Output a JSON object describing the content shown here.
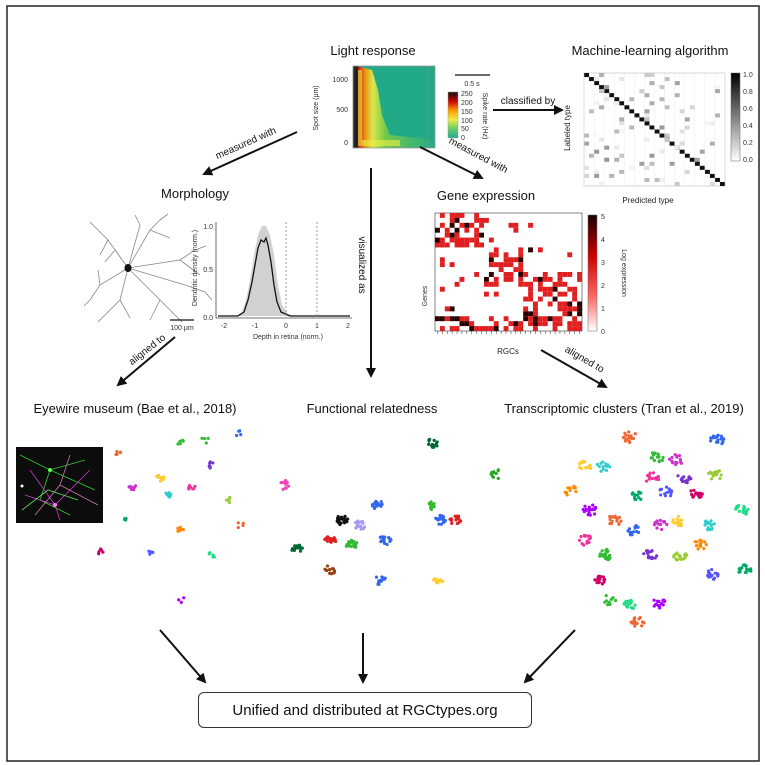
{
  "nodes": {
    "light_response": "Light response",
    "ml_algorithm": "Machine-learning algorithm",
    "morphology": "Morphology",
    "gene_expression": "Gene expression",
    "eyewire": "Eyewire museum (Bae et al., 2018)",
    "functional": "Functional relatedness",
    "transcriptomic": "Transcriptomic clusters (Tran et al., 2019)",
    "unified": "Unified and distributed at RGCtypes.org"
  },
  "edges": {
    "classified_by": "classified by",
    "measured_with_left": "measured with",
    "measured_with_right": "measured with",
    "visualized_as": "visualized as",
    "aligned_to_left": "aligned to",
    "aligned_to_right": "aligned to"
  },
  "light_panel": {
    "ylabel": "Spot size (μm)",
    "yticks": [
      "1000",
      "500",
      "0"
    ],
    "scalebar": "0.5 s",
    "cbar_label": "Spike rate (Hz)",
    "cbar_ticks": [
      "250",
      "200",
      "150",
      "100",
      "50",
      "0"
    ]
  },
  "ml_panel": {
    "ylabel": "Labeled type",
    "xlabel": "Predicted type",
    "cbar_ticks": [
      "1.0",
      "0.8",
      "0.6",
      "0.4",
      "0.2",
      "0.0"
    ]
  },
  "morph_panel": {
    "scalebar": "100 μm",
    "ylabel": "Dendritic density (norm.)",
    "xlabel": "Depth in retina (norm.)",
    "xticks": [
      "-2",
      "-1",
      "0",
      "1",
      "2"
    ],
    "yticks": [
      "1.0",
      "0.5",
      "0.0"
    ]
  },
  "gene_panel": {
    "ylabel": "Genes",
    "xlabel": "RGCs",
    "cbar_label": "Log expression",
    "cbar_ticks": [
      "5",
      "4",
      "3",
      "2",
      "1",
      "0"
    ]
  },
  "colors": {
    "gene_red": "#e02020",
    "gene_dark": "#2a0000",
    "line": "#111111"
  }
}
